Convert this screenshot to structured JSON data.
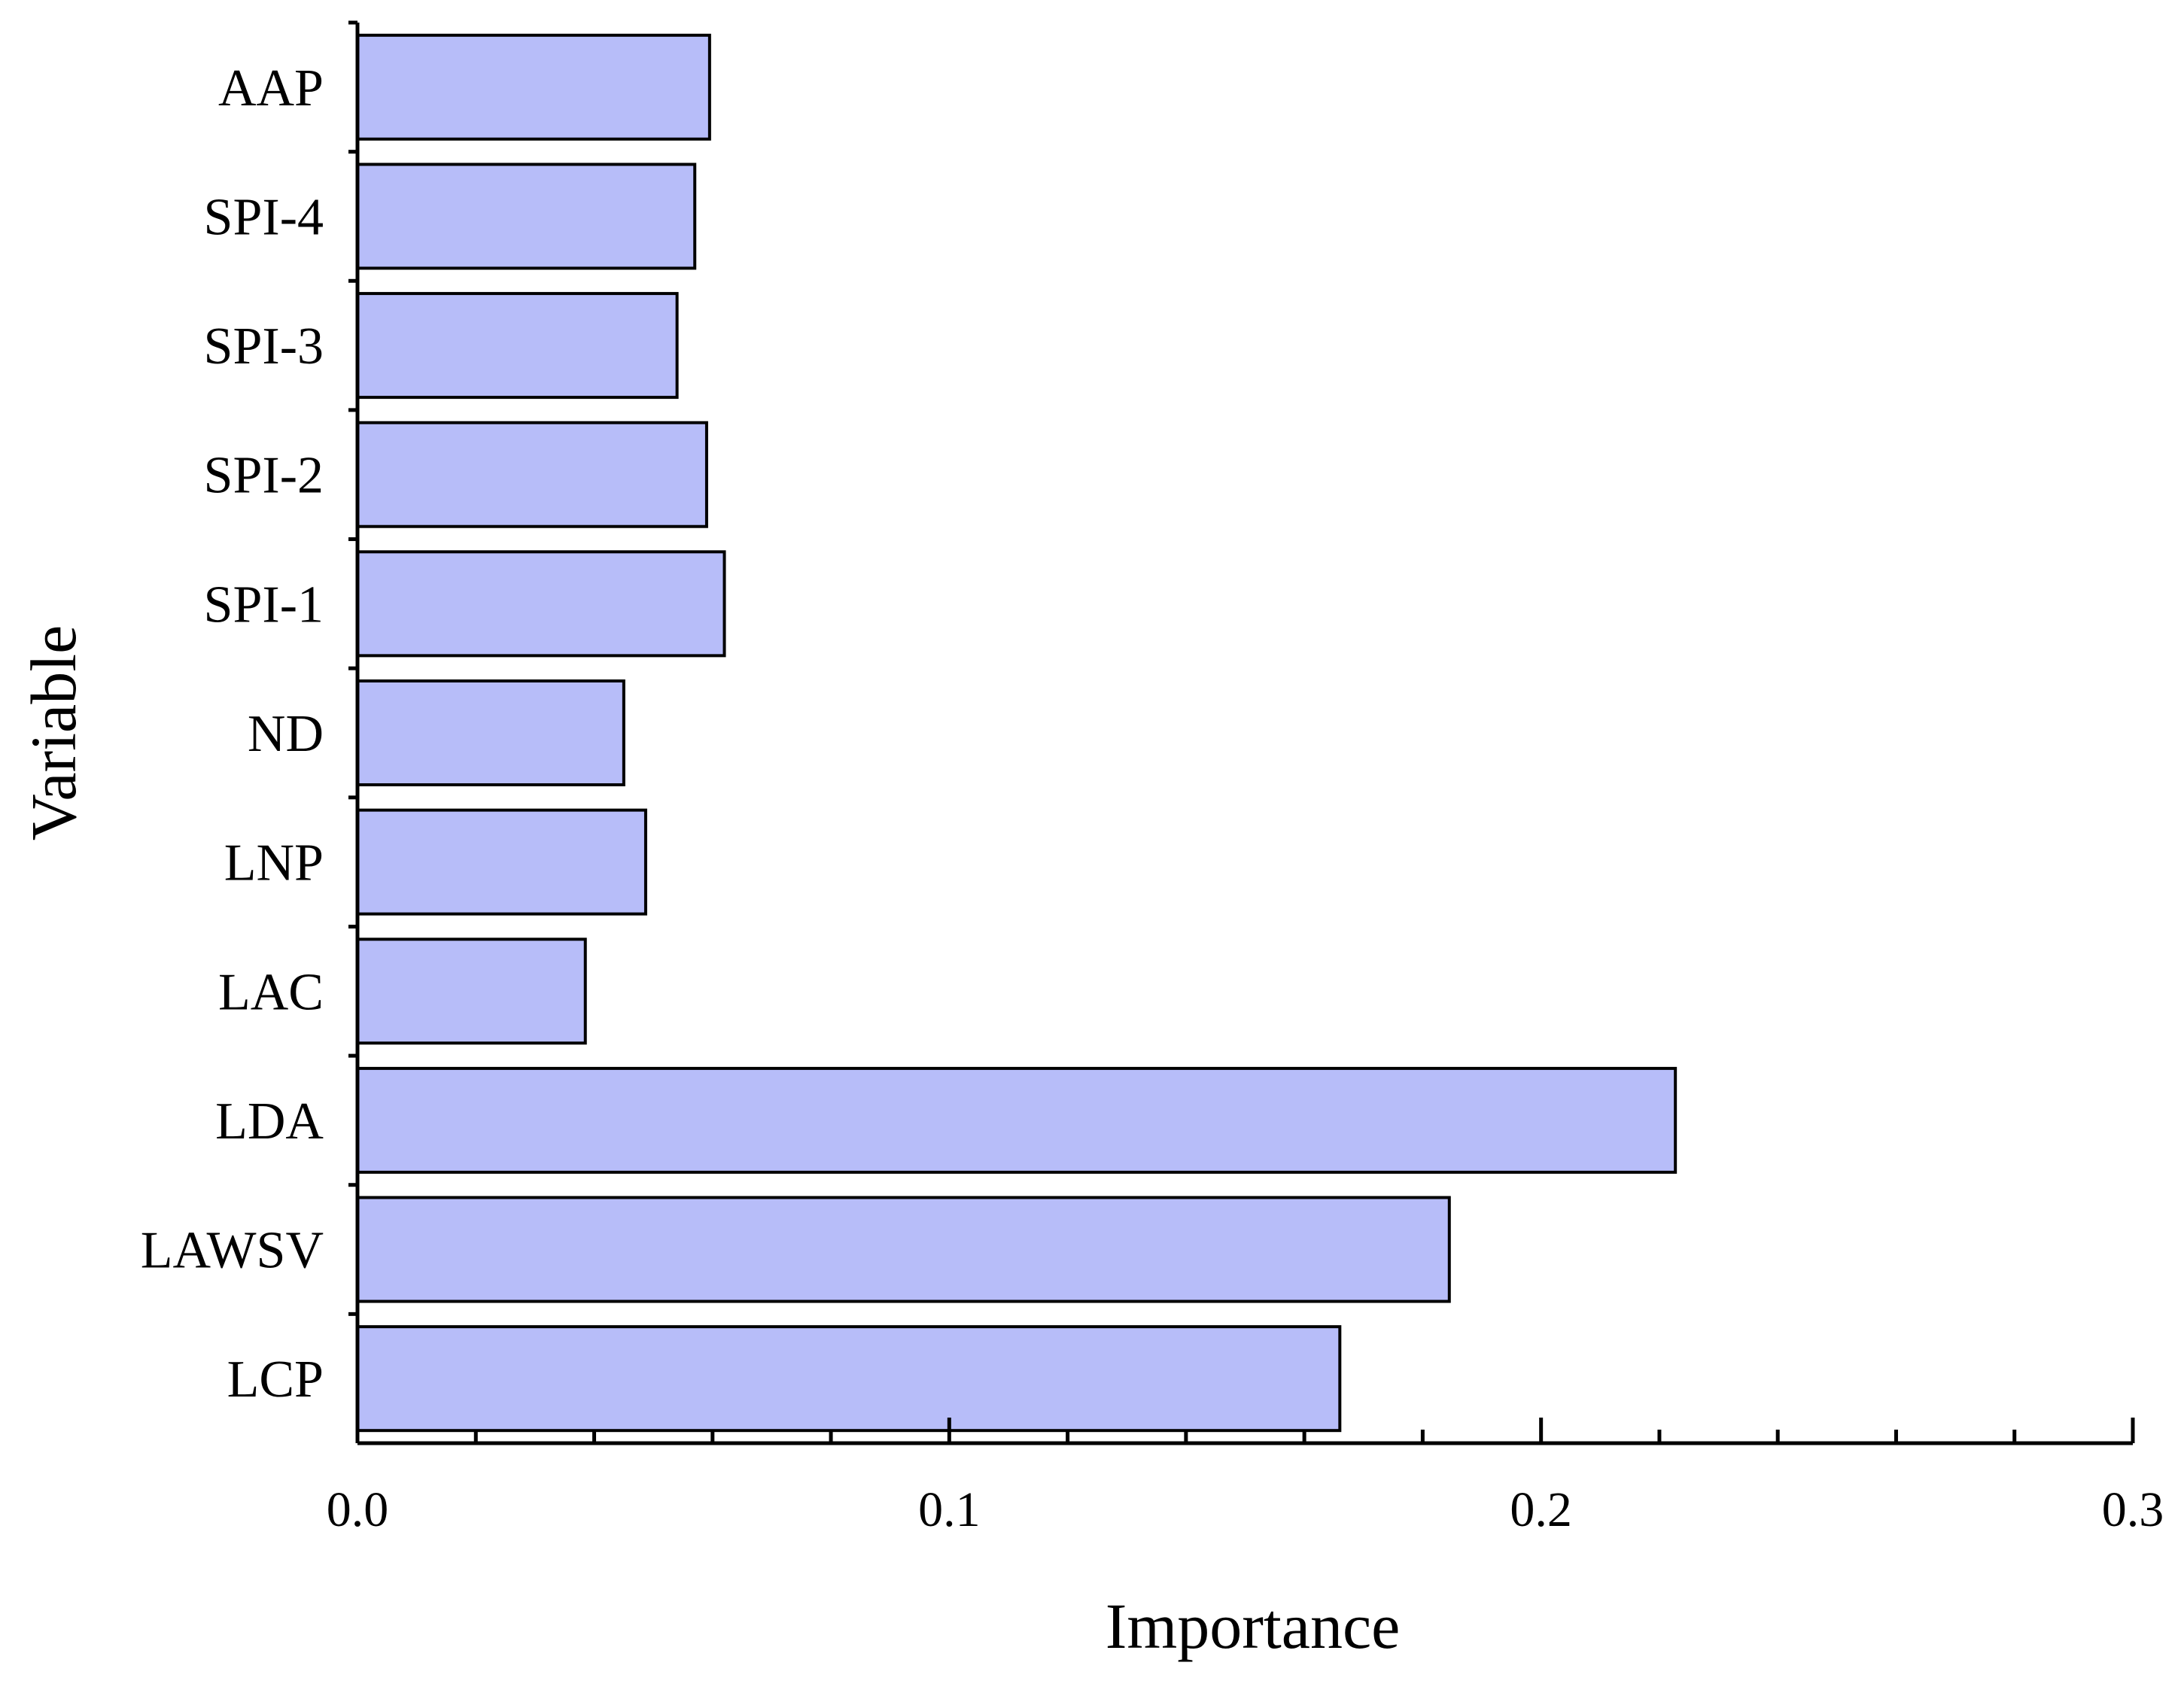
{
  "chart_data": {
    "type": "bar",
    "orientation": "horizontal",
    "title": "",
    "xlabel": "Importance",
    "ylabel": "Variable",
    "xlim": [
      0,
      0.3
    ],
    "x_ticks": [
      "0.0",
      "0.1",
      "0.2",
      "0.3"
    ],
    "categories": [
      "AAP",
      "SPI-4",
      "SPI-3",
      "SPI-2",
      "SPI-1",
      "ND",
      "LNP",
      "LAC",
      "LDA",
      "LAWSV",
      "LCP"
    ],
    "values": [
      0.0595,
      0.057,
      0.054,
      0.059,
      0.062,
      0.045,
      0.0487,
      0.0385,
      0.2227,
      0.1845,
      0.166
    ],
    "grid": false,
    "legend": "none",
    "bar_color": "#b7bdf9"
  }
}
